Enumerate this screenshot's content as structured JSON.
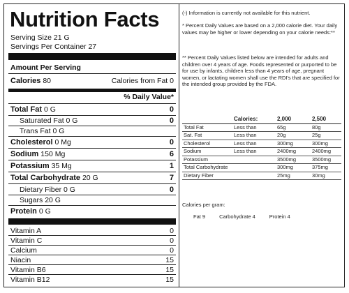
{
  "title": "Nutrition Facts",
  "serving_size": "Serving Size 21 G",
  "servings_per_container": "Servings Per Container 27",
  "amount_per_serving": "Amount Per Serving",
  "calories": {
    "label": "Calories",
    "value": "80",
    "from_fat_label": "Calories from Fat",
    "from_fat_value": "0"
  },
  "daily_value_heading": "% Daily Value*",
  "nutrients": [
    {
      "name": "Total Fat",
      "amount": "0 G",
      "dv": "0"
    },
    {
      "name": "Saturated Fat",
      "amount": "0 G",
      "dv": "0"
    },
    {
      "name": "Trans Fat",
      "amount": "0 G",
      "dv": ""
    },
    {
      "name": "Cholesterol",
      "amount": "0 Mg",
      "dv": "0"
    },
    {
      "name": "Sodium",
      "amount": "150 Mg",
      "dv": "6"
    },
    {
      "name": "Potassium",
      "amount": "35 Mg",
      "dv": "1"
    },
    {
      "name": "Total Carbohydrate",
      "amount": "20 G",
      "dv": "7"
    },
    {
      "name": "Dietary Fiber",
      "amount": "0 G",
      "dv": "0"
    },
    {
      "name": "Sugars",
      "amount": "20 G",
      "dv": ""
    },
    {
      "name": "Protein",
      "amount": "0 G",
      "dv": ""
    }
  ],
  "vitamins": [
    {
      "name": "Vitamin A",
      "value": "0"
    },
    {
      "name": "Vitamin C",
      "value": "0"
    },
    {
      "name": "Calcium",
      "value": "0"
    },
    {
      "name": "Niacin",
      "value": "15"
    },
    {
      "name": "Vitamin B6",
      "value": "15"
    },
    {
      "name": "Vitamin B12",
      "value": "15"
    }
  ],
  "notes": {
    "unavailable": "(-) Information is currently not available for this nutrient.",
    "dv_2000": "* Percent Daily Values are based on a 2,000 calorie diet. Your daily values may be higher or lower depending on your calorie needs:**",
    "dv_adults": "** Percent Daily Values listed below are intended for adults and children over 4 years of age. Foods represented or purported to be for use by infants, children less than 4 years of age, pregnant women, or lactating women shall use the RDI's that are specified for the intended group provided by the FDA."
  },
  "dv_table": {
    "headers": [
      "",
      "Calories:",
      "2,000",
      "2,500"
    ],
    "rows": [
      [
        "Total Fat",
        "Less than",
        "65g",
        "80g"
      ],
      [
        "Sat. Fat",
        "Less than",
        "20g",
        "25g"
      ],
      [
        "Cholesterol",
        "Less than",
        "300mg",
        "300mg"
      ],
      [
        "Sodium",
        "Less than",
        "2400mg",
        "2400mg"
      ],
      [
        "Potassium",
        "",
        "3500mg",
        "3500mg"
      ],
      [
        "Total Carbohydrate",
        "",
        "300mg",
        "375mg"
      ],
      [
        "Dietary Fiber",
        "",
        "25mg",
        "30mg"
      ]
    ]
  },
  "calories_per_gram": {
    "label": "Calories per gram:",
    "fat": "Fat 9",
    "carbohydrate": "Carbohydrate 4",
    "protein": "Protein 4"
  }
}
